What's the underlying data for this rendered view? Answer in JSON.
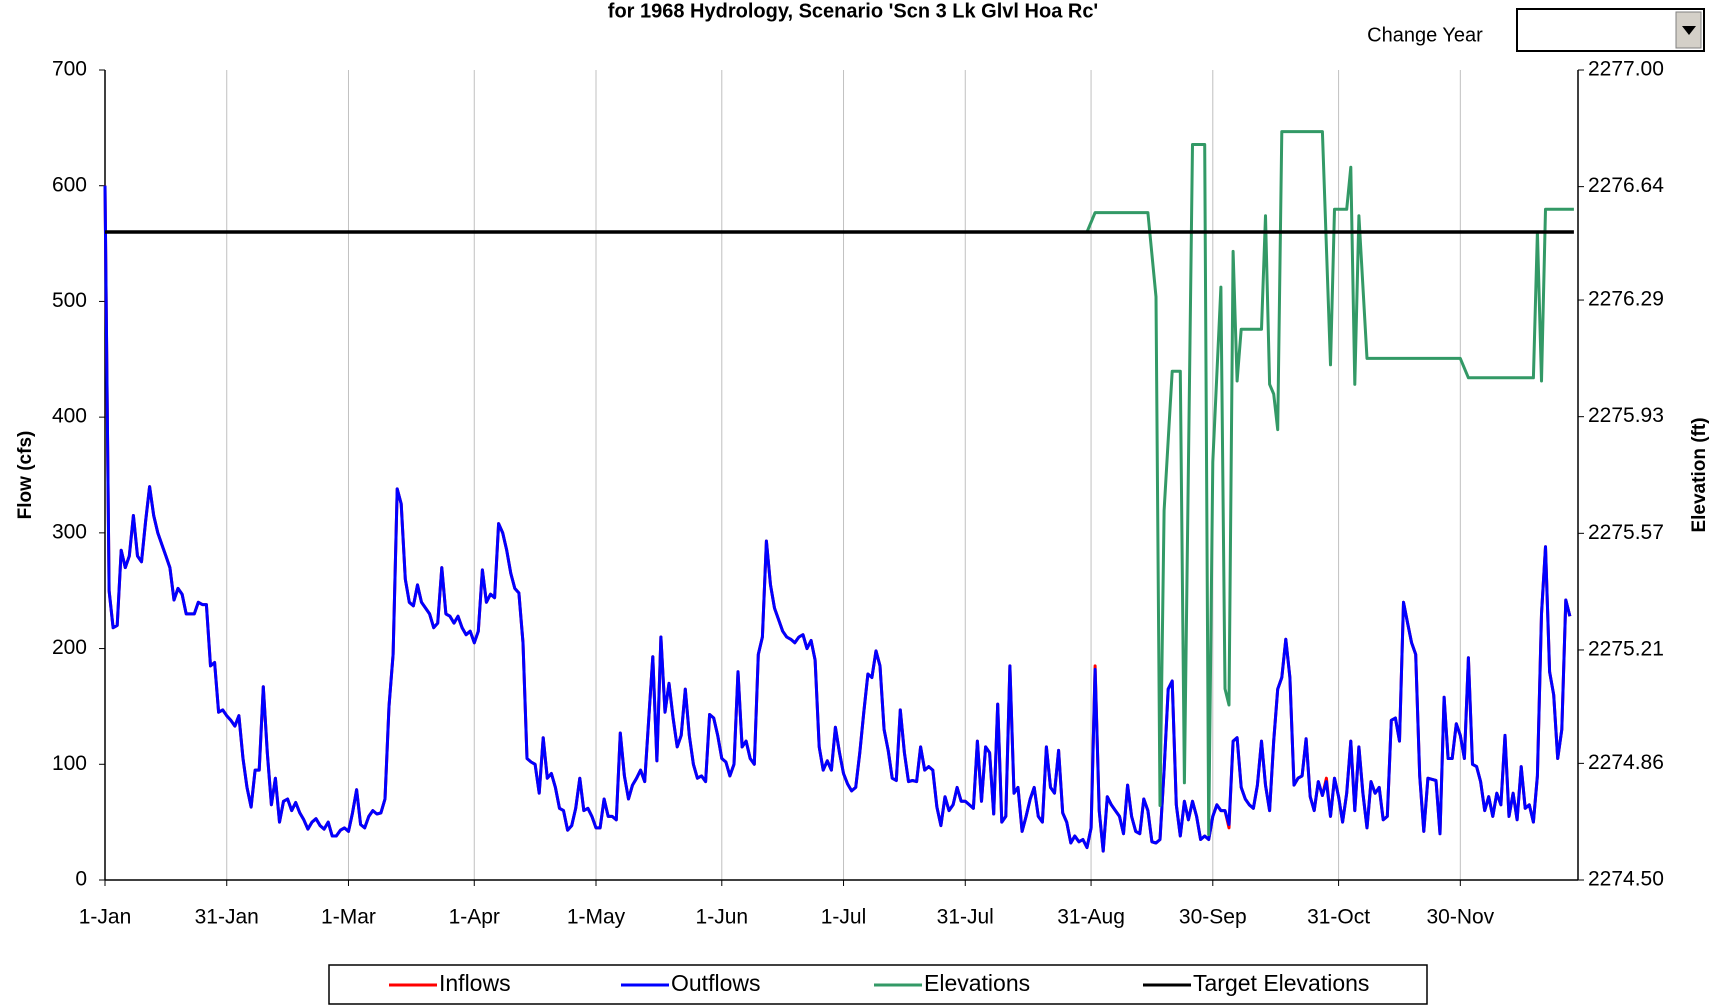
{
  "chart_data": {
    "type": "line",
    "title": "for 1968 Hydrology, Scenario 'Scn 3 Lk Glvl Hoa Rc'",
    "change_year_label": "Change Year",
    "y_label": "Flow (cfs)",
    "y2_label": "Elevation (ft)",
    "legend": "bottom",
    "grid": "x",
    "xlim": [
      0,
      363
    ],
    "xticks": [
      {
        "value": 0,
        "label": "1-Jan"
      },
      {
        "value": 30,
        "label": "31-Jan"
      },
      {
        "value": 60,
        "label": "1-Mar"
      },
      {
        "value": 91,
        "label": "1-Apr"
      },
      {
        "value": 121,
        "label": "1-May"
      },
      {
        "value": 152,
        "label": "1-Jun"
      },
      {
        "value": 182,
        "label": "1-Jul"
      },
      {
        "value": 212,
        "label": "31-Jul"
      },
      {
        "value": 243,
        "label": "31-Aug"
      },
      {
        "value": 273,
        "label": "30-Sep"
      },
      {
        "value": 304,
        "label": "31-Oct"
      },
      {
        "value": 334,
        "label": "30-Nov"
      }
    ],
    "ylim": [
      0,
      700
    ],
    "yticks": [
      0,
      100,
      200,
      300,
      400,
      500,
      600,
      700
    ],
    "y2lim": [
      2274.5,
      2277.0
    ],
    "y2ticks": [
      {
        "value": 2274.5,
        "label": "2274.50"
      },
      2274.86,
      2275.21,
      2275.57,
      2275.93,
      2276.29,
      2276.64,
      {
        "value": 2277.0,
        "label": "2277.00"
      }
    ],
    "x": [
      0,
      1,
      2,
      3,
      4,
      5,
      6,
      7,
      8,
      9,
      10,
      11,
      12,
      13,
      14,
      15,
      16,
      17,
      18,
      19,
      20,
      21,
      22,
      23,
      24,
      25,
      26,
      27,
      28,
      29,
      30,
      31,
      32,
      33,
      34,
      35,
      36,
      37,
      38,
      39,
      40,
      41,
      42,
      43,
      44,
      45,
      46,
      47,
      48,
      49,
      50,
      51,
      52,
      53,
      54,
      55,
      56,
      57,
      58,
      59,
      60,
      61,
      62,
      63,
      64,
      65,
      66,
      67,
      68,
      69,
      70,
      71,
      72,
      73,
      74,
      75,
      76,
      77,
      78,
      79,
      80,
      81,
      82,
      83,
      84,
      85,
      86,
      87,
      88,
      89,
      90,
      91,
      92,
      93,
      94,
      95,
      96,
      97,
      98,
      99,
      100,
      101,
      102,
      103,
      104,
      105,
      106,
      107,
      108,
      109,
      110,
      111,
      112,
      113,
      114,
      115,
      116,
      117,
      118,
      119,
      120,
      121,
      122,
      123,
      124,
      125,
      126,
      127,
      128,
      129,
      130,
      131,
      132,
      133,
      134,
      135,
      136,
      137,
      138,
      139,
      140,
      141,
      142,
      143,
      144,
      145,
      146,
      147,
      148,
      149,
      150,
      151,
      152,
      153,
      154,
      155,
      156,
      157,
      158,
      159,
      160,
      161,
      162,
      163,
      164,
      165,
      166,
      167,
      168,
      169,
      170,
      171,
      172,
      173,
      174,
      175,
      176,
      177,
      178,
      179,
      180,
      181,
      182,
      183,
      184,
      185,
      186,
      187,
      188,
      189,
      190,
      191,
      192,
      193,
      194,
      195,
      196,
      197,
      198,
      199,
      200,
      201,
      202,
      203,
      204,
      205,
      206,
      207,
      208,
      209,
      210,
      211,
      212,
      213,
      214,
      215,
      216,
      217,
      218,
      219,
      220,
      221,
      222,
      223,
      224,
      225,
      226,
      227,
      228,
      229,
      230,
      231,
      232,
      233,
      234,
      235,
      236,
      237,
      238,
      239,
      240,
      241,
      242,
      243,
      244,
      245,
      246,
      247,
      248,
      249,
      250,
      251,
      252,
      253,
      254,
      255,
      256,
      257,
      258,
      259,
      260,
      261,
      262,
      263,
      264,
      265,
      266,
      267,
      268,
      269,
      270,
      271,
      272,
      273,
      274,
      275,
      276,
      277,
      278,
      279,
      280,
      281,
      282,
      283,
      284,
      285,
      286,
      287,
      288,
      289,
      290,
      291,
      292,
      293,
      294,
      295,
      296,
      297,
      298,
      299,
      300,
      301,
      302,
      303,
      304,
      305,
      306,
      307,
      308,
      309,
      310,
      311,
      312,
      313,
      314,
      315,
      316,
      317,
      318,
      319,
      320,
      321,
      322,
      323,
      324,
      325,
      326,
      327,
      328,
      329,
      330,
      331,
      332,
      333,
      334,
      335,
      336,
      337,
      338,
      339,
      340,
      341,
      342,
      343,
      344,
      345,
      346,
      347,
      348,
      349,
      350,
      351,
      352,
      353,
      354,
      355,
      356,
      357,
      358,
      359,
      360,
      361
    ],
    "series": [
      {
        "name": "Inflows",
        "color": "#ff0000",
        "values": [
          600,
          250,
          218,
          220,
          285,
          270,
          280,
          315,
          280,
          275,
          310,
          340,
          315,
          300,
          290,
          280,
          270,
          242,
          252,
          247,
          230,
          230,
          230,
          240,
          238,
          238,
          185,
          188,
          145,
          147,
          142,
          138,
          133,
          142,
          105,
          80,
          63,
          95,
          95,
          167,
          110,
          65,
          88,
          50,
          68,
          70,
          60,
          67,
          58,
          52,
          44,
          50,
          53,
          47,
          44,
          50,
          38,
          38,
          43,
          45,
          42,
          58,
          78,
          48,
          45,
          55,
          60,
          57,
          58,
          70,
          150,
          195,
          338,
          325,
          260,
          240,
          237,
          255,
          240,
          235,
          230,
          218,
          222,
          270,
          230,
          228,
          222,
          228,
          218,
          212,
          215,
          205,
          215,
          268,
          240,
          247,
          244,
          308,
          300,
          285,
          265,
          252,
          248,
          205,
          105,
          102,
          100,
          75,
          123,
          88,
          92,
          80,
          62,
          60,
          43,
          47,
          62,
          88,
          60,
          62,
          55,
          45,
          45,
          70,
          55,
          55,
          52,
          127,
          90,
          70,
          82,
          88,
          95,
          85,
          140,
          193,
          103,
          210,
          145,
          170,
          140,
          115,
          125,
          165,
          125,
          100,
          88,
          90,
          85,
          143,
          140,
          125,
          105,
          102,
          90,
          100,
          180,
          115,
          120,
          105,
          100,
          195,
          210,
          293,
          255,
          235,
          225,
          215,
          210,
          208,
          205,
          210,
          212,
          200,
          207,
          190,
          115,
          95,
          103,
          95,
          132,
          110,
          92,
          83,
          77,
          80,
          110,
          145,
          178,
          175,
          198,
          185,
          130,
          112,
          88,
          86,
          147,
          110,
          85,
          86,
          85,
          115,
          95,
          98,
          95,
          63,
          47,
          72,
          60,
          65,
          80,
          68,
          68,
          65,
          62,
          120,
          68,
          115,
          110,
          57,
          152,
          50,
          55,
          185,
          75,
          80,
          42,
          55,
          70,
          80,
          55,
          50,
          115,
          80,
          75,
          112,
          58,
          50,
          32,
          38,
          33,
          35,
          28,
          45,
          185,
          60,
          25,
          72,
          65,
          60,
          55,
          40,
          82,
          55,
          42,
          40,
          70,
          60,
          33,
          32,
          35,
          95,
          165,
          172,
          65,
          38,
          68,
          52,
          68,
          55,
          35,
          38,
          35,
          55,
          65,
          60,
          60,
          45,
          120,
          123,
          80,
          70,
          65,
          62,
          82,
          120,
          82,
          60,
          120,
          165,
          175,
          208,
          175,
          82,
          88,
          90,
          122,
          72,
          60,
          85,
          73,
          88,
          55,
          88,
          72,
          50,
          75,
          120,
          60,
          115,
          75,
          45,
          85,
          75,
          80,
          52,
          55,
          138,
          140,
          120,
          240,
          222,
          205,
          195,
          90,
          42,
          88,
          87,
          86,
          40,
          158,
          105,
          105,
          135,
          125,
          105,
          192,
          100,
          98,
          85,
          60,
          72,
          55,
          75,
          65,
          125,
          55,
          75,
          52,
          98,
          62,
          65,
          50,
          90,
          230,
          288,
          180,
          160,
          105,
          130,
          242,
          228
        ]
      },
      {
        "name": "Outflows",
        "color": "#0000ff",
        "values": [
          600,
          250,
          218,
          220,
          285,
          270,
          280,
          315,
          280,
          275,
          310,
          340,
          315,
          300,
          290,
          280,
          270,
          242,
          252,
          247,
          230,
          230,
          230,
          240,
          238,
          238,
          185,
          188,
          145,
          147,
          142,
          138,
          133,
          142,
          105,
          80,
          63,
          95,
          95,
          167,
          110,
          65,
          88,
          50,
          68,
          70,
          60,
          67,
          58,
          52,
          44,
          50,
          53,
          47,
          44,
          50,
          38,
          38,
          43,
          45,
          42,
          58,
          78,
          48,
          45,
          55,
          60,
          57,
          58,
          70,
          150,
          195,
          338,
          325,
          260,
          240,
          237,
          255,
          240,
          235,
          230,
          218,
          222,
          270,
          230,
          228,
          222,
          228,
          218,
          212,
          215,
          205,
          215,
          268,
          240,
          247,
          244,
          308,
          300,
          285,
          265,
          252,
          248,
          205,
          105,
          102,
          100,
          75,
          123,
          88,
          92,
          80,
          62,
          60,
          43,
          47,
          62,
          88,
          60,
          62,
          55,
          45,
          45,
          70,
          55,
          55,
          52,
          127,
          90,
          70,
          82,
          88,
          95,
          85,
          140,
          193,
          103,
          210,
          145,
          170,
          140,
          115,
          125,
          165,
          125,
          100,
          88,
          90,
          85,
          143,
          140,
          125,
          105,
          102,
          90,
          100,
          180,
          115,
          120,
          105,
          100,
          195,
          210,
          293,
          255,
          235,
          225,
          215,
          210,
          208,
          205,
          210,
          212,
          200,
          207,
          190,
          115,
          95,
          103,
          95,
          132,
          110,
          92,
          83,
          77,
          80,
          110,
          145,
          178,
          175,
          198,
          185,
          130,
          112,
          88,
          86,
          147,
          110,
          85,
          86,
          85,
          115,
          95,
          98,
          95,
          63,
          47,
          72,
          60,
          65,
          80,
          68,
          68,
          65,
          62,
          120,
          68,
          115,
          110,
          57,
          152,
          50,
          55,
          185,
          75,
          80,
          42,
          55,
          70,
          80,
          55,
          50,
          115,
          80,
          75,
          112,
          58,
          50,
          32,
          38,
          33,
          35,
          28,
          45,
          182,
          60,
          25,
          72,
          65,
          60,
          55,
          40,
          82,
          55,
          42,
          40,
          70,
          60,
          33,
          32,
          35,
          95,
          165,
          172,
          65,
          38,
          68,
          52,
          68,
          55,
          35,
          38,
          35,
          55,
          65,
          60,
          60,
          48,
          120,
          123,
          80,
          70,
          65,
          62,
          82,
          120,
          82,
          60,
          120,
          165,
          175,
          208,
          175,
          82,
          88,
          90,
          122,
          72,
          60,
          85,
          73,
          85,
          55,
          88,
          72,
          50,
          75,
          120,
          60,
          115,
          75,
          45,
          85,
          75,
          80,
          52,
          55,
          138,
          140,
          120,
          240,
          222,
          205,
          195,
          90,
          42,
          88,
          87,
          86,
          40,
          158,
          105,
          105,
          135,
          125,
          105,
          192,
          100,
          98,
          85,
          60,
          72,
          55,
          75,
          65,
          125,
          55,
          75,
          52,
          98,
          62,
          65,
          50,
          90,
          230,
          288,
          180,
          160,
          105,
          130,
          242,
          228
        ]
      },
      {
        "name": "Elevations",
        "color": "#339966",
        "axis": "y2",
        "x": [
          242,
          244,
          257,
          259,
          260,
          261,
          263,
          265,
          266,
          268,
          271,
          272,
          273,
          275,
          276,
          277,
          278,
          279,
          280,
          285,
          286,
          287,
          288,
          289,
          290,
          300,
          302,
          303,
          306,
          307,
          308,
          309,
          311,
          334,
          336,
          352,
          353,
          354,
          355,
          362
        ],
        "values": [
          2276.5,
          2276.56,
          2276.56,
          2276.3,
          2274.73,
          2275.64,
          2276.07,
          2276.07,
          2274.8,
          2276.77,
          2276.77,
          2274.64,
          2275.79,
          2276.33,
          2275.09,
          2275.04,
          2276.44,
          2276.04,
          2276.2,
          2276.2,
          2276.55,
          2276.03,
          2276.0,
          2275.89,
          2276.81,
          2276.81,
          2276.09,
          2276.57,
          2276.57,
          2276.7,
          2276.03,
          2276.55,
          2276.11,
          2276.11,
          2276.05,
          2276.05,
          2276.5,
          2276.04,
          2276.57,
          2276.57
        ]
      },
      {
        "name": "Target Elevations",
        "color": "#000000",
        "axis": "y2",
        "x": [
          0,
          362
        ],
        "values": [
          2276.5,
          2276.5
        ]
      }
    ]
  }
}
